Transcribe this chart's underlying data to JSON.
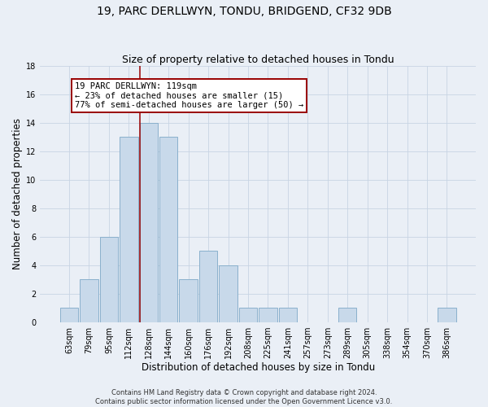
{
  "title": "19, PARC DERLLWYN, TONDU, BRIDGEND, CF32 9DB",
  "subtitle": "Size of property relative to detached houses in Tondu",
  "xlabel": "Distribution of detached houses by size in Tondu",
  "ylabel": "Number of detached properties",
  "categories": [
    "63sqm",
    "79sqm",
    "95sqm",
    "112sqm",
    "128sqm",
    "144sqm",
    "160sqm",
    "176sqm",
    "192sqm",
    "208sqm",
    "225sqm",
    "241sqm",
    "257sqm",
    "273sqm",
    "289sqm",
    "305sqm",
    "338sqm",
    "354sqm",
    "370sqm",
    "386sqm"
  ],
  "values": [
    1,
    3,
    6,
    13,
    14,
    13,
    3,
    5,
    4,
    1,
    1,
    1,
    0,
    0,
    1,
    0,
    0,
    0,
    0,
    1
  ],
  "bar_color": "#c8d9ea",
  "bar_edge_color": "#8ab0cc",
  "grid_color": "#c8d4e3",
  "bg_color": "#eaeff6",
  "vline_x": 3.55,
  "vline_color": "#990000",
  "annotation_text": "19 PARC DERLLWYN: 119sqm\n← 23% of detached houses are smaller (15)\n77% of semi-detached houses are larger (50) →",
  "annotation_box_color": "#ffffff",
  "annotation_box_edge": "#990000",
  "ylim": [
    0,
    18
  ],
  "yticks": [
    0,
    2,
    4,
    6,
    8,
    10,
    12,
    14,
    16,
    18
  ],
  "footer_line1": "Contains HM Land Registry data © Crown copyright and database right 2024.",
  "footer_line2": "Contains public sector information licensed under the Open Government Licence v3.0.",
  "title_fontsize": 10,
  "subtitle_fontsize": 9,
  "xlabel_fontsize": 8.5,
  "ylabel_fontsize": 8.5,
  "tick_fontsize": 7,
  "annot_fontsize": 7.5,
  "footer_fontsize": 6
}
